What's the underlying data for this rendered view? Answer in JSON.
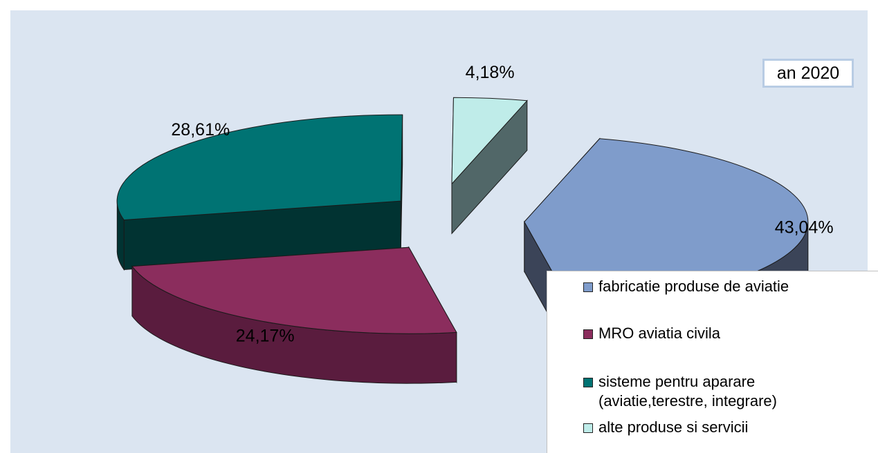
{
  "chart_data": {
    "type": "pie",
    "title": "an 2020",
    "slices": [
      {
        "label": "fabricatie produse de aviatie",
        "value": 43.04,
        "value_label": "43,04%",
        "color": "#7f9ccb",
        "side_color": "#3b4458"
      },
      {
        "label": "MRO aviatia civila",
        "value": 24.17,
        "value_label": "24,17%",
        "color": "#8b2d5d",
        "side_color": "#5a1c3e"
      },
      {
        "label": "sisteme pentru aparare",
        "label_line2": "(aviatie,terestre, integrare)",
        "value": 28.61,
        "value_label": "28,61%",
        "color": "#007373",
        "side_color": "#013332"
      },
      {
        "label": "alte produse si servicii",
        "value": 4.18,
        "value_label": "4,18%",
        "color": "#bfece9",
        "side_color": "#516768"
      }
    ],
    "legend_position": "bottom-right",
    "style": "3d-exploded"
  }
}
